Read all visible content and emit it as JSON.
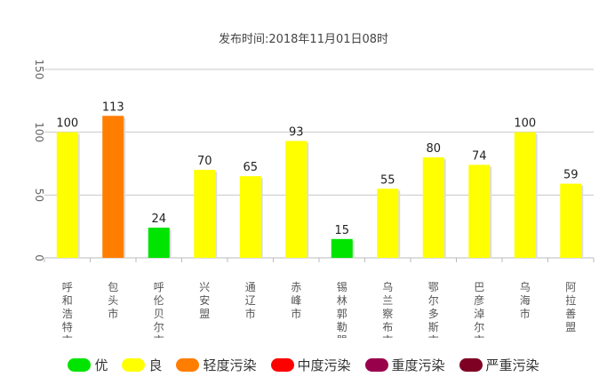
{
  "chart_data": {
    "type": "bar",
    "subtitle": "发布时间:2018年11月01日08时",
    "categories": [
      "呼和浩特市",
      "包头市",
      "呼伦贝尔市",
      "兴安盟",
      "通辽市",
      "赤峰市",
      "锡林郭勒盟",
      "乌兰察布市",
      "鄂尔多斯市",
      "巴彦淖尔市",
      "乌海市",
      "阿拉善盟"
    ],
    "values": [
      100,
      113,
      24,
      70,
      65,
      93,
      15,
      55,
      80,
      74,
      100,
      59
    ],
    "levels": [
      "良",
      "轻度污染",
      "优",
      "良",
      "良",
      "良",
      "优",
      "良",
      "良",
      "良",
      "良",
      "良"
    ],
    "ylim": [
      0,
      150
    ],
    "yticks": [
      0,
      50,
      100,
      150
    ],
    "grid": true,
    "legend_position": "bottom",
    "legend": [
      {
        "label": "优",
        "color": "#00e400"
      },
      {
        "label": "良",
        "color": "#ffff00"
      },
      {
        "label": "轻度污染",
        "color": "#ff7e00"
      },
      {
        "label": "中度污染",
        "color": "#ff0000"
      },
      {
        "label": "重度污染",
        "color": "#99004c"
      },
      {
        "label": "严重污染",
        "color": "#7e0023"
      }
    ]
  }
}
